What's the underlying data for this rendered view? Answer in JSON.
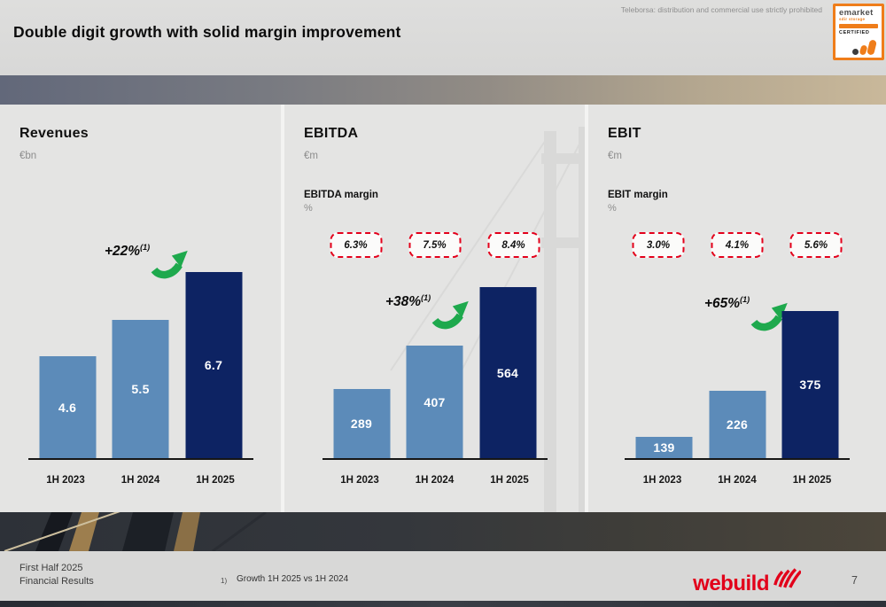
{
  "header": {
    "title": "Double digit growth with solid margin improvement",
    "disclaimer": "Teleborsa: distribution and commercial use strictly prohibited",
    "badge": {
      "line1": "emarket",
      "line2": "sdir storage",
      "certified": "CERTIFIED"
    }
  },
  "colors": {
    "bar_light": "#5c8bb9",
    "bar_dark": "#0d2363",
    "growth_green": "#1ea94d",
    "margin_red": "#e3001b",
    "brand_red": "#e2001a"
  },
  "chart_data": [
    {
      "type": "bar",
      "title": "Revenues",
      "unit": "€bn",
      "categories": [
        "1H 2023",
        "1H 2024",
        "1H 2025"
      ],
      "values": [
        4.6,
        5.5,
        6.7
      ],
      "labels": [
        "4.6",
        "5.5",
        "6.7"
      ],
      "growth": "+22%",
      "growth_note": "(1)"
    },
    {
      "type": "bar",
      "title": "EBITDA",
      "unit": "€m",
      "categories": [
        "1H 2023",
        "1H 2024",
        "1H 2025"
      ],
      "values": [
        289,
        407,
        564
      ],
      "labels": [
        "289",
        "407",
        "564"
      ],
      "growth": "+38%",
      "growth_note": "(1)",
      "margin_label": "EBITDA margin",
      "margin_unit": "%",
      "margins": [
        "6.3%",
        "7.5%",
        "8.4%"
      ]
    },
    {
      "type": "bar",
      "title": "EBIT",
      "unit": "€m",
      "categories": [
        "1H 2023",
        "1H 2024",
        "1H 2025"
      ],
      "values": [
        139,
        226,
        375
      ],
      "labels": [
        "139",
        "226",
        "375"
      ],
      "growth": "+65%",
      "growth_note": "(1)",
      "margin_label": "EBIT margin",
      "margin_unit": "%",
      "margins": [
        "3.0%",
        "4.1%",
        "5.6%"
      ]
    }
  ],
  "footnote": {
    "marker": "1)",
    "text": "Growth 1H 2025 vs 1H 2024"
  },
  "footer": {
    "line1": "First Half 2025",
    "line2": "Financial Results",
    "logo_text": "webuild",
    "page": "7"
  }
}
